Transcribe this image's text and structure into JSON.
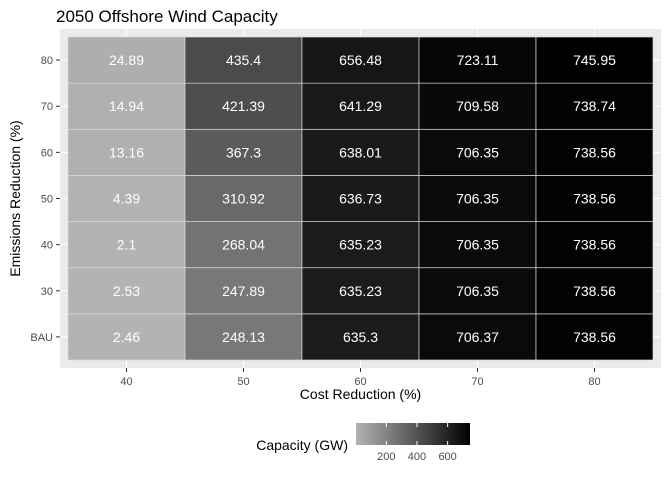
{
  "chart_data": {
    "type": "heatmap",
    "title": "2050 Offshore Wind Capacity",
    "xlabel": "Cost Reduction (%)",
    "ylabel": "Emissions Reduction (%)",
    "x_categories": [
      "40",
      "50",
      "60",
      "70",
      "80"
    ],
    "y_categories": [
      "BAU",
      "30",
      "40",
      "50",
      "60",
      "70",
      "80"
    ],
    "values": [
      [
        2.46,
        248.13,
        635.3,
        706.37,
        738.56
      ],
      [
        2.53,
        247.89,
        635.23,
        706.35,
        738.56
      ],
      [
        2.1,
        268.04,
        635.23,
        706.35,
        738.56
      ],
      [
        4.39,
        310.92,
        636.73,
        706.35,
        738.56
      ],
      [
        13.16,
        367.3,
        638.01,
        706.35,
        738.56
      ],
      [
        14.94,
        421.39,
        641.29,
        709.58,
        738.74
      ],
      [
        24.89,
        435.4,
        656.48,
        723.11,
        745.95
      ]
    ],
    "value_labels": [
      [
        "2.46",
        "248.13",
        "635.3",
        "706.37",
        "738.56"
      ],
      [
        "2.53",
        "247.89",
        "635.23",
        "706.35",
        "738.56"
      ],
      [
        "2.1",
        "268.04",
        "635.23",
        "706.35",
        "738.56"
      ],
      [
        "4.39",
        "310.92",
        "636.73",
        "706.35",
        "738.56"
      ],
      [
        "13.16",
        "367.3",
        "638.01",
        "706.35",
        "738.56"
      ],
      [
        "14.94",
        "421.39",
        "641.29",
        "709.58",
        "738.74"
      ],
      [
        "24.89",
        "435.4",
        "656.48",
        "723.11",
        "745.95"
      ]
    ],
    "legend": {
      "title": "Capacity (GW)",
      "position": "bottom",
      "breaks": [
        200,
        400,
        600
      ],
      "break_labels": [
        "200",
        "400",
        "600"
      ],
      "range": [
        2.1,
        745.95
      ],
      "low_color": "#b3b3b3",
      "high_color": "#000000"
    },
    "grid": true,
    "panel_background": "#ebebeb",
    "grid_color": "#ffffff"
  }
}
